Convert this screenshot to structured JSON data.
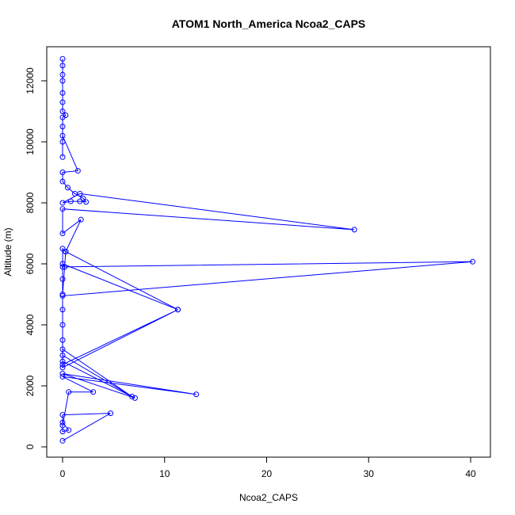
{
  "chart_data": {
    "type": "line",
    "title": "ATOM1 North_America Ncoa2_CAPS",
    "xlabel": "Ncoa2_CAPS",
    "ylabel": "Altitude (m)",
    "xlim": [
      0,
      40
    ],
    "ylim": [
      0,
      12000
    ],
    "x_ticks": [
      0,
      10,
      20,
      30,
      40
    ],
    "y_ticks": [
      0,
      2000,
      4000,
      6000,
      8000,
      10000,
      12000
    ],
    "x_tick_labels": [
      "0",
      "10",
      "20",
      "30",
      "40"
    ],
    "y_tick_labels": [
      "0",
      "2000",
      "4000",
      "6000",
      "8000",
      "10000",
      "12000"
    ],
    "grid": false,
    "markers": "open circles",
    "series": [
      {
        "color": "#0000ff",
        "points": [
          [
            0,
            200
          ],
          [
            4.7,
            1100
          ],
          [
            0,
            1050
          ],
          [
            0,
            800
          ],
          [
            0.6,
            550
          ],
          [
            0,
            500
          ],
          [
            0,
            700
          ],
          [
            0.6,
            1800
          ],
          [
            3.0,
            1800
          ],
          [
            0,
            2300
          ],
          [
            13.1,
            1720
          ],
          [
            0,
            2400
          ],
          [
            7.1,
            1600
          ],
          [
            0,
            3000
          ],
          [
            0,
            2800
          ],
          [
            6.8,
            1650
          ],
          [
            0,
            3200
          ],
          [
            0,
            2600
          ],
          [
            11.3,
            4500
          ],
          [
            0,
            2700
          ],
          [
            0,
            3500
          ],
          [
            0,
            4000
          ],
          [
            0,
            4500
          ],
          [
            0,
            4950
          ],
          [
            40.2,
            6070
          ],
          [
            0,
            5900
          ],
          [
            0,
            5500
          ],
          [
            0,
            5000
          ],
          [
            0.2,
            5900
          ],
          [
            0.3,
            6400
          ],
          [
            11.3,
            4500
          ],
          [
            0,
            6000
          ],
          [
            0,
            6500
          ],
          [
            0.3,
            6400
          ],
          [
            1.8,
            7450
          ],
          [
            0,
            7000
          ],
          [
            0,
            7800
          ],
          [
            28.6,
            7120
          ],
          [
            1.7,
            8300
          ],
          [
            0,
            8000
          ],
          [
            0.8,
            8050
          ],
          [
            1.7,
            8050
          ],
          [
            2.3,
            8030
          ],
          [
            2.0,
            8150
          ],
          [
            1.2,
            8300
          ],
          [
            0.5,
            8500
          ],
          [
            0,
            8700
          ],
          [
            0,
            9000
          ],
          [
            1.5,
            9050
          ],
          [
            0,
            10200
          ],
          [
            0,
            10000
          ],
          [
            0,
            9500
          ],
          [
            0,
            10500
          ],
          [
            0,
            10800
          ],
          [
            0.3,
            10870
          ],
          [
            0,
            11000
          ],
          [
            0,
            11300
          ],
          [
            0,
            11600
          ],
          [
            0,
            12000
          ],
          [
            0,
            12200
          ],
          [
            0,
            12500
          ],
          [
            0,
            12720
          ]
        ]
      }
    ]
  }
}
